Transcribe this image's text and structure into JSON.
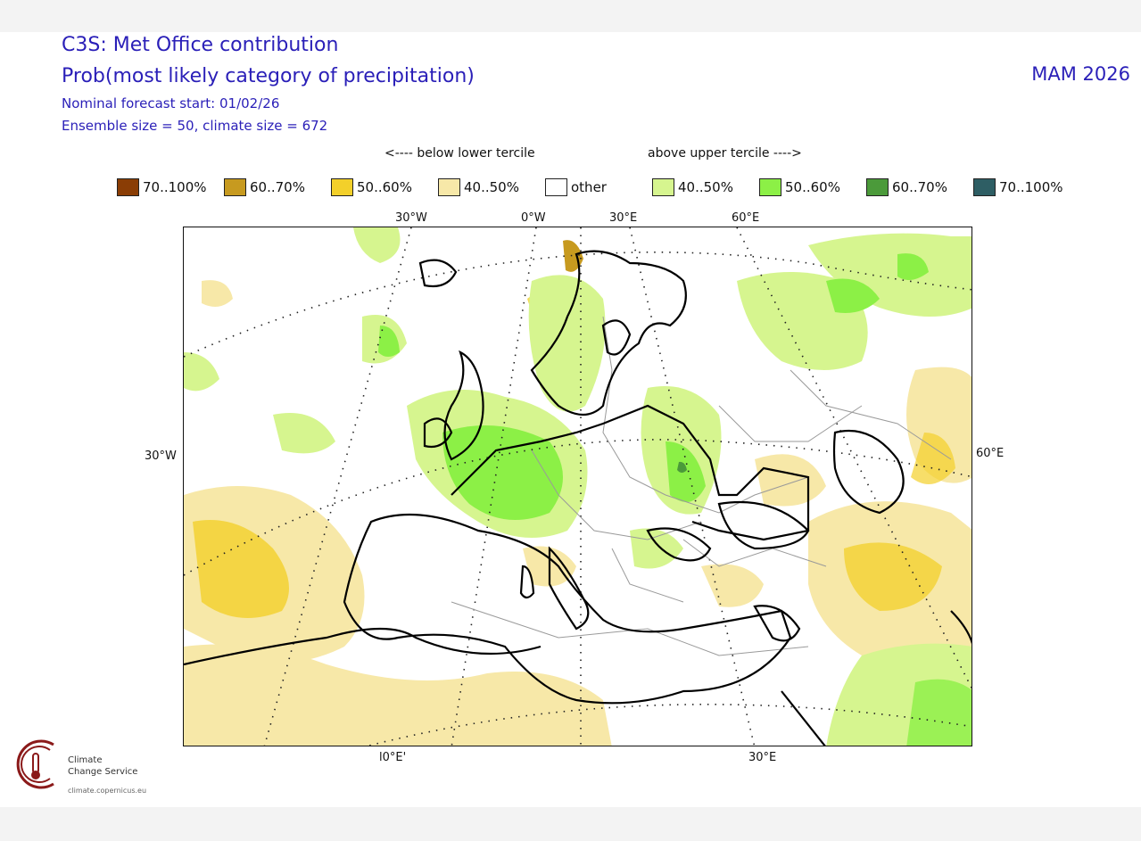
{
  "header": {
    "title": "C3S: Met Office contribution",
    "subtitle": "Prob(most likely category of precipitation)",
    "forecast_start": "Nominal forecast start: 01/02/26",
    "ensemble": "Ensemble size = 50, climate size = 672",
    "season": "MAM 2026"
  },
  "legend": {
    "below_label": "<---- below lower tercile",
    "above_label": "above upper tercile ---->",
    "items": [
      {
        "label": "70..100%",
        "color": "#8a3d05"
      },
      {
        "label": "60..70%",
        "color": "#c79a1f"
      },
      {
        "label": "50..60%",
        "color": "#f3d02a"
      },
      {
        "label": "40..50%",
        "color": "#f7e8a8"
      },
      {
        "label": "other",
        "color": "#ffffff"
      },
      {
        "label": "40..50%",
        "color": "#d6f58f"
      },
      {
        "label": "50..60%",
        "color": "#8cf046"
      },
      {
        "label": "60..70%",
        "color": "#4b9a3a"
      },
      {
        "label": "70..100%",
        "color": "#2e5e64"
      }
    ]
  },
  "axes": {
    "top_lon": [
      "30°W",
      "0°W",
      "30°E",
      "60°E"
    ],
    "left_lat": "30°W",
    "right_lat": "60°E",
    "bottom_lon": [
      "l0°E'",
      "30°E"
    ]
  },
  "logo": {
    "line1": "Climate",
    "line2": "Change Service",
    "url": "climate.copernicus.eu"
  }
}
